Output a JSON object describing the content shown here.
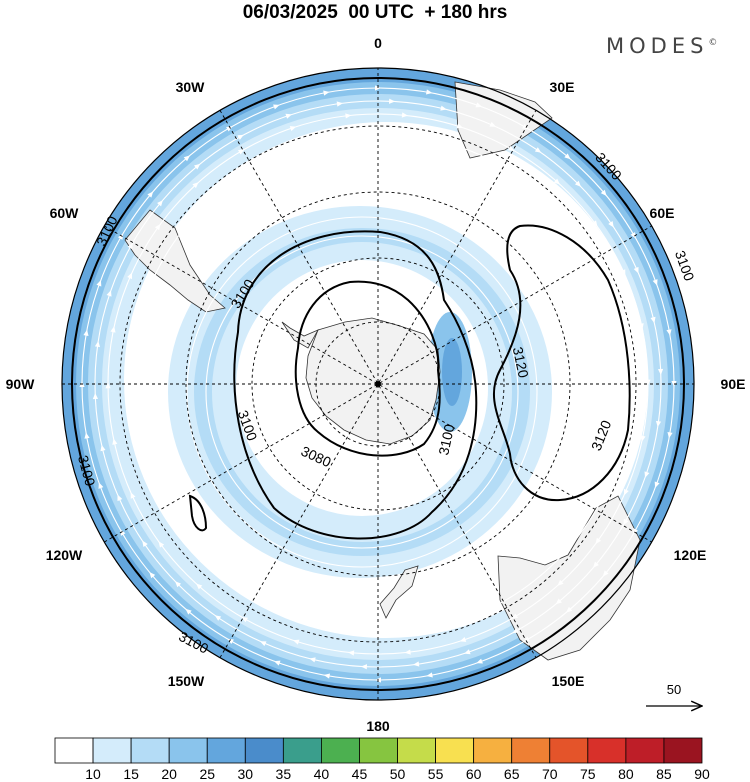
{
  "title": "06/03/2025  00 UTC  + 180 hrs",
  "logo": {
    "text": "MODES",
    "mark": "©"
  },
  "map": {
    "projection": "polar-stereographic-south",
    "longitude_labels": [
      {
        "key": "0",
        "text": "0"
      },
      {
        "key": "30E",
        "text": "30E"
      },
      {
        "key": "60E",
        "text": "60E"
      },
      {
        "key": "90E",
        "text": "90E"
      },
      {
        "key": "120E",
        "text": "120E"
      },
      {
        "key": "150E",
        "text": "150E"
      },
      {
        "key": "180",
        "text": "180"
      },
      {
        "key": "150W",
        "text": "150W"
      },
      {
        "key": "120W",
        "text": "120W"
      },
      {
        "key": "90W",
        "text": "90W"
      },
      {
        "key": "60W",
        "text": "60W"
      },
      {
        "key": "30W",
        "text": "30W"
      }
    ],
    "contour_labels": [
      "3100",
      "3100",
      "3100",
      "3100",
      "3100",
      "3100",
      "3080",
      "3120",
      "3120",
      "3100"
    ],
    "fill_colors": [
      "#ffffff",
      "#d4ecfb",
      "#b4dcf6",
      "#8ac4ec",
      "#63a6dd",
      "#4a8ccb"
    ],
    "land_color": "#f2f2f2"
  },
  "reference_vector": {
    "label": "50"
  },
  "colorbar": {
    "levels": [
      "10",
      "15",
      "20",
      "25",
      "30",
      "35",
      "40",
      "45",
      "50",
      "55",
      "60",
      "65",
      "70",
      "75",
      "80",
      "85",
      "90"
    ],
    "colors": [
      "#ffffff",
      "#d4ecfb",
      "#b4dcf6",
      "#8ac4ec",
      "#63a6dd",
      "#4a8ccb",
      "#3a9e8c",
      "#4cb050",
      "#86c540",
      "#c5dc4a",
      "#f8e050",
      "#f6b040",
      "#ee8034",
      "#e4542a",
      "#d8302a",
      "#be1e28",
      "#9a1420"
    ]
  }
}
